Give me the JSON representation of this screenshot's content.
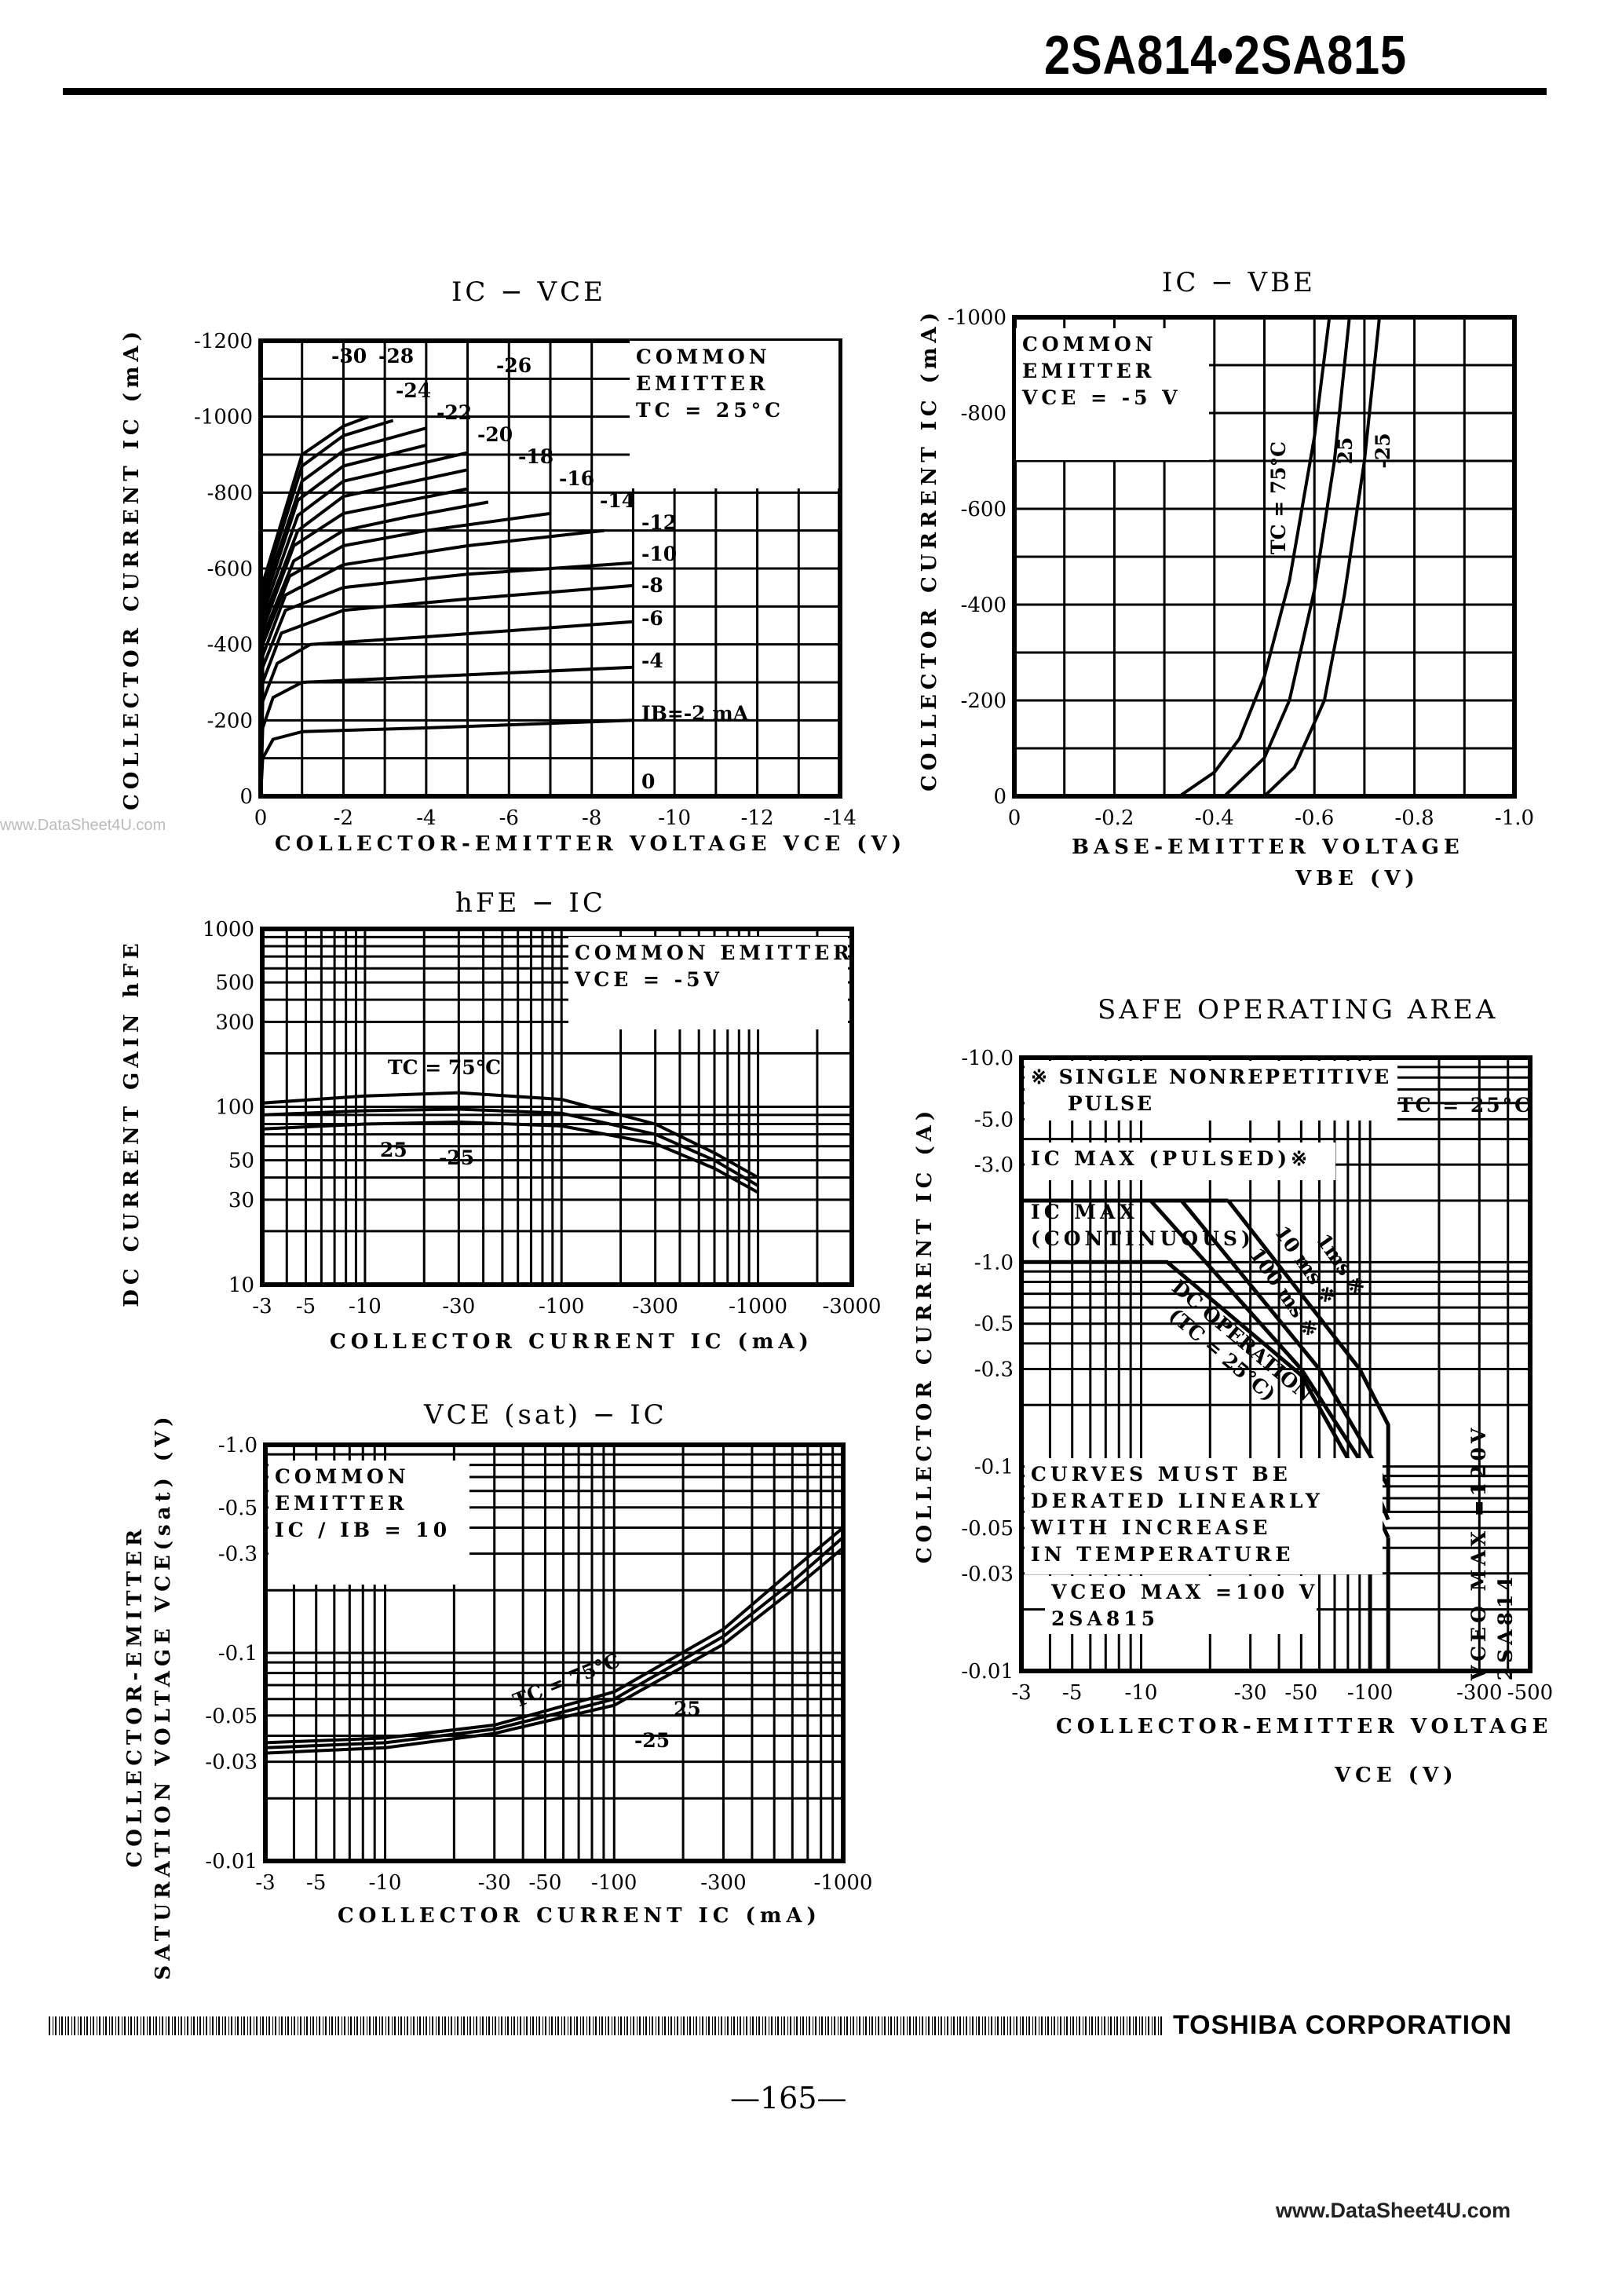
{
  "header": {
    "title": "2SA814•2SA815"
  },
  "watermark_left": "www.DataSheet4U.com",
  "footer": {
    "company": "TOSHIBA CORPORATION",
    "page_number": "—165—",
    "site": "www.DataSheet4U.com"
  },
  "chart_data": [
    {
      "type": "line",
      "title": "IC − VCE",
      "xlabel": "COLLECTOR-EMITTER VOLTAGE VCE (V)",
      "ylabel": "COLLECTOR CURRENT IC (mA)",
      "xscale": "linear",
      "yscale": "linear",
      "xlim": [
        0,
        -14
      ],
      "ylim": [
        0,
        -1200
      ],
      "xticks": [
        0,
        -2,
        -4,
        -6,
        -8,
        -10,
        -12,
        -14
      ],
      "xtick_labels": [
        "0",
        "-2",
        "-4",
        "-6",
        "-8",
        "-10",
        "-12",
        "-14"
      ],
      "yticks": [
        0,
        -200,
        -400,
        -600,
        -800,
        -1000,
        -1200
      ],
      "ytick_labels": [
        "0",
        "-200",
        "-400",
        "-600",
        "-800",
        "-1000",
        "-1200"
      ],
      "grid": true,
      "annotation": {
        "common_emitter": "COMMON\nEMITTER",
        "condition": "TC = 25°C"
      },
      "series": [
        {
          "name": "0",
          "points": [
            [
              0,
              0
            ],
            [
              9,
              0
            ]
          ]
        },
        {
          "name": "IB=-2 mA",
          "points": [
            [
              0,
              0
            ],
            [
              -0.05,
              -100
            ],
            [
              -0.3,
              -150
            ],
            [
              -1,
              -170
            ],
            [
              -4,
              -180
            ],
            [
              -9,
              -200
            ]
          ]
        },
        {
          "name": "-4",
          "points": [
            [
              0,
              0
            ],
            [
              -0.05,
              -180
            ],
            [
              -0.3,
              -260
            ],
            [
              -1,
              -300
            ],
            [
              -3,
              -310
            ],
            [
              -9,
              -340
            ]
          ]
        },
        {
          "name": "-6",
          "points": [
            [
              0,
              0
            ],
            [
              -0.05,
              -250
            ],
            [
              -0.4,
              -350
            ],
            [
              -1.2,
              -400
            ],
            [
              -4,
              -420
            ],
            [
              -9,
              -460
            ]
          ]
        },
        {
          "name": "-8",
          "points": [
            [
              0,
              0
            ],
            [
              -0.05,
              -300
            ],
            [
              -0.5,
              -430
            ],
            [
              -2,
              -490
            ],
            [
              -5,
              -520
            ],
            [
              -9,
              -555
            ]
          ]
        },
        {
          "name": "-10",
          "points": [
            [
              0,
              0
            ],
            [
              -0.05,
              -340
            ],
            [
              -0.6,
              -490
            ],
            [
              -2,
              -550
            ],
            [
              -5,
              -585
            ],
            [
              -9,
              -615
            ]
          ]
        },
        {
          "name": "-12",
          "points": [
            [
              0,
              0
            ],
            [
              -0.05,
              -370
            ],
            [
              -0.6,
              -530
            ],
            [
              -2,
              -610
            ],
            [
              -5,
              -660
            ],
            [
              -8.3,
              -700
            ]
          ]
        },
        {
          "name": "-14",
          "points": [
            [
              0,
              0
            ],
            [
              -0.05,
              -400
            ],
            [
              -0.7,
              -580
            ],
            [
              -2,
              -660
            ],
            [
              -4,
              -700
            ],
            [
              -7,
              -745
            ]
          ]
        },
        {
          "name": "-16",
          "points": [
            [
              0,
              0
            ],
            [
              -0.05,
              -420
            ],
            [
              -0.8,
              -620
            ],
            [
              -2,
              -700
            ],
            [
              -3.5,
              -735
            ],
            [
              -5.5,
              -775
            ]
          ]
        },
        {
          "name": "-18",
          "points": [
            [
              0,
              0
            ],
            [
              -0.05,
              -440
            ],
            [
              -0.8,
              -660
            ],
            [
              -2,
              -745
            ],
            [
              -5,
              -810
            ]
          ]
        },
        {
          "name": "-20",
          "points": [
            [
              0,
              0
            ],
            [
              -0.05,
              -460
            ],
            [
              -0.9,
              -700
            ],
            [
              -2,
              -790
            ],
            [
              -5,
              -860
            ]
          ]
        },
        {
          "name": "-22",
          "points": [
            [
              0,
              0
            ],
            [
              -0.05,
              -480
            ],
            [
              -0.9,
              -740
            ],
            [
              -2,
              -830
            ],
            [
              -5,
              -905
            ]
          ]
        },
        {
          "name": "-24",
          "points": [
            [
              0,
              0
            ],
            [
              -0.05,
              -500
            ],
            [
              -0.9,
              -780
            ],
            [
              -2,
              -870
            ],
            [
              -4,
              -925
            ]
          ]
        },
        {
          "name": "-26",
          "points": [
            [
              0,
              0
            ],
            [
              -0.05,
              -520
            ],
            [
              -1,
              -830
            ],
            [
              -2,
              -910
            ],
            [
              -4,
              -970
            ]
          ]
        },
        {
          "name": "-28",
          "points": [
            [
              0,
              0
            ],
            [
              -0.05,
              -540
            ],
            [
              -1,
              -870
            ],
            [
              -2,
              -950
            ],
            [
              -3.2,
              -990
            ]
          ]
        },
        {
          "name": "-30",
          "points": [
            [
              0,
              0
            ],
            [
              -0.05,
              -560
            ],
            [
              -1,
              -900
            ],
            [
              -2,
              -975
            ],
            [
              -2.6,
              -1000
            ]
          ]
        }
      ]
    },
    {
      "type": "line",
      "title": "IC − VBE",
      "xlabel": "BASE-EMITTER VOLTAGE",
      "xlabel2": "VBE (V)",
      "ylabel": "COLLECTOR CURRENT IC (mA)",
      "xscale": "linear",
      "yscale": "linear",
      "xlim": [
        0,
        -1.0
      ],
      "ylim": [
        0,
        -1000
      ],
      "xticks": [
        0,
        -0.2,
        -0.4,
        -0.6,
        -0.8,
        -1.0
      ],
      "xtick_labels": [
        "0",
        "-0.2",
        "-0.4",
        "-0.6",
        "-0.8",
        "-1.0"
      ],
      "yticks": [
        0,
        -200,
        -400,
        -600,
        -800,
        -1000
      ],
      "ytick_labels": [
        "0",
        "-200",
        "-400",
        "-600",
        "-800",
        "-1000"
      ],
      "grid": true,
      "annotation": {
        "common_emitter": "COMMON\nEMITTER",
        "condition": "VCE = -5 V"
      },
      "series": [
        {
          "name": "TC = 75°C",
          "points": [
            [
              -0.33,
              0
            ],
            [
              -0.4,
              -50
            ],
            [
              -0.45,
              -120
            ],
            [
              -0.5,
              -250
            ],
            [
              -0.55,
              -450
            ],
            [
              -0.6,
              -750
            ],
            [
              -0.63,
              -1000
            ]
          ]
        },
        {
          "name": "25",
          "points": [
            [
              -0.42,
              0
            ],
            [
              -0.5,
              -80
            ],
            [
              -0.55,
              -200
            ],
            [
              -0.6,
              -430
            ],
            [
              -0.64,
              -700
            ],
            [
              -0.67,
              -1000
            ]
          ]
        },
        {
          "name": "-25",
          "points": [
            [
              -0.5,
              0
            ],
            [
              -0.56,
              -60
            ],
            [
              -0.62,
              -200
            ],
            [
              -0.66,
              -420
            ],
            [
              -0.7,
              -700
            ],
            [
              -0.73,
              -1000
            ]
          ]
        }
      ]
    },
    {
      "type": "line",
      "title": "hFE − IC",
      "xlabel": "COLLECTOR CURRENT IC (mA)",
      "ylabel": "DC CURRENT GAIN hFE",
      "xscale": "log",
      "yscale": "log",
      "xlim": [
        -3,
        -3000
      ],
      "ylim": [
        10,
        1000
      ],
      "xticks": [
        -3,
        -5,
        -10,
        -30,
        -100,
        -300,
        -1000,
        -3000
      ],
      "xtick_labels": [
        "-3",
        "-5",
        "-10",
        "-30",
        "-100",
        "-300",
        "-1000",
        "-3000"
      ],
      "yticks": [
        10,
        30,
        50,
        100,
        300,
        500,
        1000
      ],
      "ytick_labels": [
        "10",
        "30",
        "50",
        "100",
        "300",
        "500",
        "1000"
      ],
      "grid": true,
      "annotation": {
        "common_emitter": "COMMON EMITTER",
        "condition": "VCE = -5V"
      },
      "series": [
        {
          "name": "TC = 75°C",
          "points": [
            [
              -3,
              105
            ],
            [
              -10,
              115
            ],
            [
              -30,
              120
            ],
            [
              -100,
              110
            ],
            [
              -300,
              80
            ],
            [
              -600,
              55
            ],
            [
              -1000,
              40
            ]
          ]
        },
        {
          "name": "25",
          "points": [
            [
              -3,
              90
            ],
            [
              -10,
              95
            ],
            [
              -30,
              97
            ],
            [
              -100,
              92
            ],
            [
              -300,
              70
            ],
            [
              -600,
              50
            ],
            [
              -1000,
              36
            ]
          ]
        },
        {
          "name": "-25",
          "points": [
            [
              -3,
              75
            ],
            [
              -10,
              80
            ],
            [
              -30,
              82
            ],
            [
              -100,
              78
            ],
            [
              -300,
              62
            ],
            [
              -600,
              45
            ],
            [
              -1000,
              33
            ]
          ]
        }
      ]
    },
    {
      "type": "line",
      "title": "VCE (sat) − IC",
      "xlabel": "COLLECTOR CURRENT IC (mA)",
      "ylabel": "COLLECTOR-EMITTER",
      "ylabel2": "SATURATION VOLTAGE VCE(sat) (V)",
      "xscale": "log",
      "yscale": "log",
      "xlim": [
        -3,
        -1000
      ],
      "ylim": [
        -0.01,
        -1.0
      ],
      "xticks": [
        -3,
        -5,
        -10,
        -30,
        -50,
        -100,
        -300,
        -1000
      ],
      "xtick_labels": [
        "-3",
        "-5",
        "-10",
        "-30",
        "-50",
        "-100",
        "-300",
        "-1000"
      ],
      "yticks": [
        -0.01,
        -0.03,
        -0.05,
        -0.1,
        -0.3,
        -0.5,
        -1.0
      ],
      "ytick_labels": [
        "-0.01",
        "-0.03",
        "-0.05",
        "-0.1",
        "-0.3",
        "-0.5",
        "-1.0"
      ],
      "grid": true,
      "annotation": {
        "common_emitter": "COMMON\nEMITTER",
        "condition": "IC / IB = 10"
      },
      "series": [
        {
          "name": "TC = 75°C",
          "points": [
            [
              -3,
              -0.037
            ],
            [
              -10,
              -0.039
            ],
            [
              -30,
              -0.045
            ],
            [
              -100,
              -0.065
            ],
            [
              -300,
              -0.13
            ],
            [
              -600,
              -0.25
            ],
            [
              -1000,
              -0.4
            ]
          ]
        },
        {
          "name": "25",
          "points": [
            [
              -3,
              -0.035
            ],
            [
              -10,
              -0.037
            ],
            [
              -30,
              -0.043
            ],
            [
              -100,
              -0.06
            ],
            [
              -300,
              -0.12
            ],
            [
              -600,
              -0.22
            ],
            [
              -1000,
              -0.36
            ]
          ]
        },
        {
          "name": "-25",
          "points": [
            [
              -3,
              -0.033
            ],
            [
              -10,
              -0.035
            ],
            [
              -30,
              -0.041
            ],
            [
              -100,
              -0.056
            ],
            [
              -300,
              -0.11
            ],
            [
              -600,
              -0.2
            ],
            [
              -1000,
              -0.32
            ]
          ]
        }
      ]
    },
    {
      "type": "line",
      "title": "SAFE OPERATING AREA",
      "xlabel": "COLLECTOR-EMITTER VOLTAGE",
      "xlabel2": "VCE (V)",
      "ylabel": "COLLECTOR CURRENT IC (A)",
      "xscale": "log",
      "yscale": "log",
      "xlim": [
        -3,
        -500
      ],
      "ylim": [
        -0.01,
        -10.0
      ],
      "xticks": [
        -3,
        -5,
        -10,
        -30,
        -50,
        -100,
        -300,
        -500
      ],
      "xtick_labels": [
        "-3",
        "-5",
        "-10",
        "-30",
        "-50",
        "-100",
        "-300",
        "-500"
      ],
      "yticks": [
        -0.01,
        -0.03,
        -0.05,
        -0.1,
        -0.3,
        -0.5,
        -1.0,
        -3.0,
        -5.0,
        -10.0
      ],
      "ytick_labels": [
        "-0.01",
        "-0.03",
        "-0.05",
        "-0.1",
        "-0.3",
        "-0.5",
        "-1.0",
        "-3.0",
        "-5.0",
        "-10.0"
      ],
      "grid": true,
      "annotation": {
        "pulse_note": "※ SINGLE NONREPETITIVE\n    PULSE",
        "condition": "TC = 25°C",
        "ic_max_pulsed": "IC MAX (PULSED)※",
        "ic_max_continuous": "IC MAX\n(CONTINUOUS)",
        "derating": "CURVES MUST BE\nDERATED LINEARLY\nWITH INCREASE\nIN TEMPERATURE",
        "vceo_815": "VCEO MAX =100 V\n2SA815",
        "vceo_814": "VCEO MAX =120V\n2SA814"
      },
      "series": [
        {
          "name": "DC OPERATION (TC = 25°C)",
          "points": [
            [
              -3,
              -1.0
            ],
            [
              -13,
              -1.0
            ],
            [
              -50,
              -0.28
            ],
            [
              -100,
              -0.07
            ],
            [
              -120,
              -0.045
            ]
          ]
        },
        {
          "name": "100 ms ※",
          "points": [
            [
              -11,
              -2.0
            ],
            [
              -50,
              -0.3
            ],
            [
              -100,
              -0.09
            ],
            [
              -120,
              -0.055
            ]
          ]
        },
        {
          "name": "10 ms ※",
          "points": [
            [
              -15,
              -2.0
            ],
            [
              -60,
              -0.3
            ],
            [
              -120,
              -0.08
            ]
          ]
        },
        {
          "name": "1ms ※",
          "points": [
            [
              -24,
              -2.0
            ],
            [
              -90,
              -0.3
            ],
            [
              -120,
              -0.16
            ],
            [
              -120,
              -0.06
            ]
          ]
        },
        {
          "name": "IC MAX (PULSED)",
          "points": [
            [
              -3,
              -2.0
            ],
            [
              -24,
              -2.0
            ]
          ]
        },
        {
          "name": "VCEO MAX 2SA815",
          "points": [
            [
              -100,
              -0.01
            ],
            [
              -100,
              -0.03
            ]
          ]
        },
        {
          "name": "VCEO MAX 2SA814",
          "points": [
            [
              -120,
              -0.01
            ],
            [
              -120,
              -0.045
            ]
          ]
        }
      ]
    }
  ]
}
